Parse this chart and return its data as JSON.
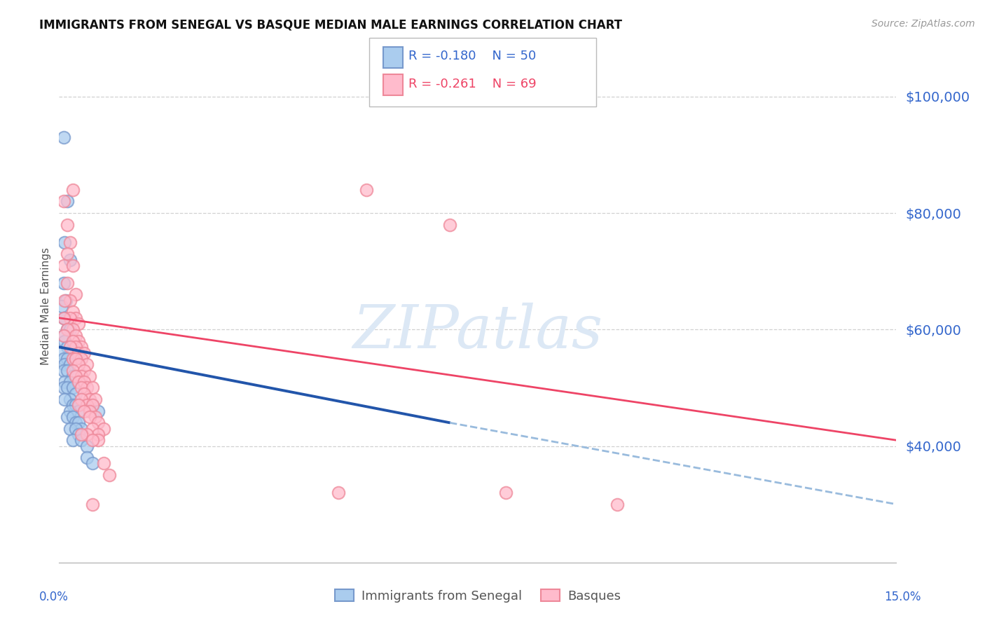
{
  "title": "IMMIGRANTS FROM SENEGAL VS BASQUE MEDIAN MALE EARNINGS CORRELATION CHART",
  "source": "Source: ZipAtlas.com",
  "ylabel": "Median Male Earnings",
  "ytick_labels": [
    "$40,000",
    "$60,000",
    "$80,000",
    "$100,000"
  ],
  "ytick_values": [
    40000,
    60000,
    80000,
    100000
  ],
  "ymin": 20000,
  "ymax": 108000,
  "xmin": 0.0,
  "xmax": 0.15,
  "legend_blue_r": "-0.180",
  "legend_blue_n": "50",
  "legend_pink_r": "-0.261",
  "legend_pink_n": "69",
  "blue_face": "#AACCEE",
  "blue_edge": "#7799CC",
  "pink_face": "#FFBBCC",
  "pink_edge": "#EE8899",
  "blue_line_color": "#2255AA",
  "pink_line_color": "#EE4466",
  "blue_dashed_color": "#99BBDD",
  "grid_color": "#CCCCCC",
  "axis_label_color": "#3366CC",
  "blue_scatter": [
    [
      0.0008,
      93000
    ],
    [
      0.0015,
      82000
    ],
    [
      0.001,
      75000
    ],
    [
      0.002,
      72000
    ],
    [
      0.0008,
      68000
    ],
    [
      0.0012,
      65000
    ],
    [
      0.0005,
      64000
    ],
    [
      0.001,
      62000
    ],
    [
      0.0008,
      62000
    ],
    [
      0.0015,
      60000
    ],
    [
      0.002,
      60000
    ],
    [
      0.0008,
      59000
    ],
    [
      0.001,
      58000
    ],
    [
      0.0015,
      57000
    ],
    [
      0.002,
      56000
    ],
    [
      0.0005,
      56000
    ],
    [
      0.0008,
      55000
    ],
    [
      0.0015,
      55000
    ],
    [
      0.001,
      54000
    ],
    [
      0.002,
      54000
    ],
    [
      0.0008,
      53000
    ],
    [
      0.0015,
      53000
    ],
    [
      0.0025,
      52000
    ],
    [
      0.001,
      51000
    ],
    [
      0.002,
      51000
    ],
    [
      0.0008,
      50000
    ],
    [
      0.0015,
      50000
    ],
    [
      0.0025,
      50000
    ],
    [
      0.003,
      49000
    ],
    [
      0.002,
      48000
    ],
    [
      0.001,
      48000
    ],
    [
      0.0025,
      47000
    ],
    [
      0.003,
      47000
    ],
    [
      0.0035,
      46000
    ],
    [
      0.002,
      46000
    ],
    [
      0.0015,
      45000
    ],
    [
      0.0025,
      45000
    ],
    [
      0.003,
      44000
    ],
    [
      0.0035,
      44000
    ],
    [
      0.004,
      43000
    ],
    [
      0.002,
      43000
    ],
    [
      0.003,
      43000
    ],
    [
      0.0035,
      42000
    ],
    [
      0.0025,
      41000
    ],
    [
      0.004,
      41000
    ],
    [
      0.005,
      40000
    ],
    [
      0.006,
      47000
    ],
    [
      0.007,
      46000
    ],
    [
      0.005,
      38000
    ],
    [
      0.006,
      37000
    ]
  ],
  "pink_scatter": [
    [
      0.0008,
      82000
    ],
    [
      0.0015,
      78000
    ],
    [
      0.002,
      75000
    ],
    [
      0.0015,
      73000
    ],
    [
      0.0008,
      71000
    ],
    [
      0.0025,
      71000
    ],
    [
      0.0015,
      68000
    ],
    [
      0.003,
      66000
    ],
    [
      0.002,
      65000
    ],
    [
      0.001,
      65000
    ],
    [
      0.0025,
      63000
    ],
    [
      0.003,
      62000
    ],
    [
      0.002,
      62000
    ],
    [
      0.0008,
      62000
    ],
    [
      0.0035,
      61000
    ],
    [
      0.0025,
      60000
    ],
    [
      0.0015,
      60000
    ],
    [
      0.003,
      59000
    ],
    [
      0.0008,
      59000
    ],
    [
      0.0035,
      58000
    ],
    [
      0.0025,
      58000
    ],
    [
      0.004,
      57000
    ],
    [
      0.003,
      57000
    ],
    [
      0.002,
      57000
    ],
    [
      0.0035,
      56000
    ],
    [
      0.0045,
      56000
    ],
    [
      0.0025,
      55000
    ],
    [
      0.004,
      55000
    ],
    [
      0.003,
      55000
    ],
    [
      0.005,
      54000
    ],
    [
      0.0035,
      54000
    ],
    [
      0.0025,
      53000
    ],
    [
      0.0045,
      53000
    ],
    [
      0.004,
      52000
    ],
    [
      0.003,
      52000
    ],
    [
      0.0055,
      52000
    ],
    [
      0.0035,
      51000
    ],
    [
      0.0045,
      51000
    ],
    [
      0.005,
      50000
    ],
    [
      0.004,
      50000
    ],
    [
      0.006,
      50000
    ],
    [
      0.0045,
      49000
    ],
    [
      0.0055,
      48000
    ],
    [
      0.004,
      48000
    ],
    [
      0.0065,
      48000
    ],
    [
      0.005,
      47000
    ],
    [
      0.006,
      47000
    ],
    [
      0.0035,
      47000
    ],
    [
      0.0055,
      46000
    ],
    [
      0.0045,
      46000
    ],
    [
      0.0065,
      45000
    ],
    [
      0.0055,
      45000
    ],
    [
      0.007,
      44000
    ],
    [
      0.006,
      43000
    ],
    [
      0.008,
      43000
    ],
    [
      0.007,
      42000
    ],
    [
      0.005,
      42000
    ],
    [
      0.004,
      42000
    ],
    [
      0.007,
      41000
    ],
    [
      0.006,
      41000
    ],
    [
      0.055,
      84000
    ],
    [
      0.0025,
      84000
    ],
    [
      0.07,
      78000
    ],
    [
      0.008,
      37000
    ],
    [
      0.009,
      35000
    ],
    [
      0.05,
      32000
    ],
    [
      0.006,
      30000
    ],
    [
      0.08,
      32000
    ],
    [
      0.1,
      30000
    ]
  ]
}
